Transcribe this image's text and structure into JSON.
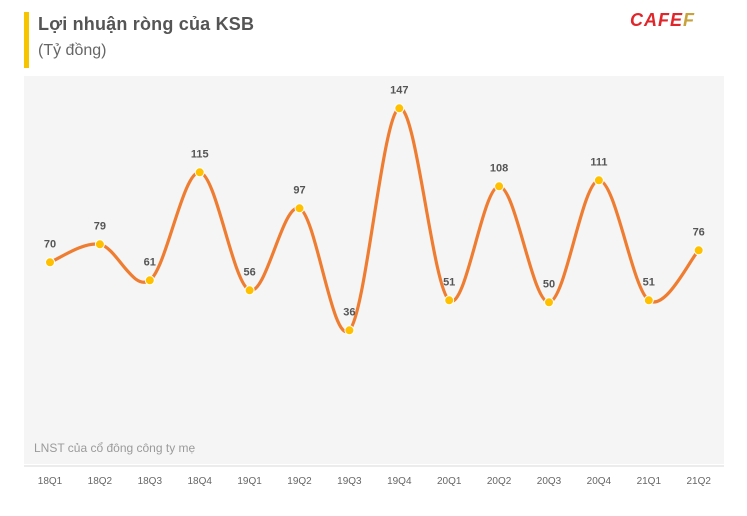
{
  "header": {
    "title": "Lợi nhuận ròng của KSB",
    "subtitle": "(Tỷ đồng)"
  },
  "logo": {
    "text_main": "CAFE",
    "text_accent": "F"
  },
  "footnote": "LNST của cổ đông công ty mẹ",
  "colors": {
    "line": "#ef7d31",
    "marker": "#ffc000",
    "accent_bar": "#f7c400",
    "logo": "#e0262b"
  },
  "chart_data": {
    "type": "line",
    "title": "Lợi nhuận ròng của KSB",
    "ylabel": "(Tỷ đồng)",
    "xlabel": "",
    "categories": [
      "18Q1",
      "18Q2",
      "18Q3",
      "18Q4",
      "19Q1",
      "19Q2",
      "19Q3",
      "19Q4",
      "20Q1",
      "20Q2",
      "20Q3",
      "20Q4",
      "21Q1",
      "21Q2"
    ],
    "series": [
      {
        "name": "LNST của cổ đông công ty mẹ",
        "values": [
          70,
          79,
          61,
          115,
          56,
          97,
          36,
          147,
          51,
          108,
          50,
          111,
          51,
          76
        ]
      }
    ],
    "ylim": [
      0,
      160
    ],
    "grid": false,
    "smooth": true,
    "data_labels": true
  }
}
